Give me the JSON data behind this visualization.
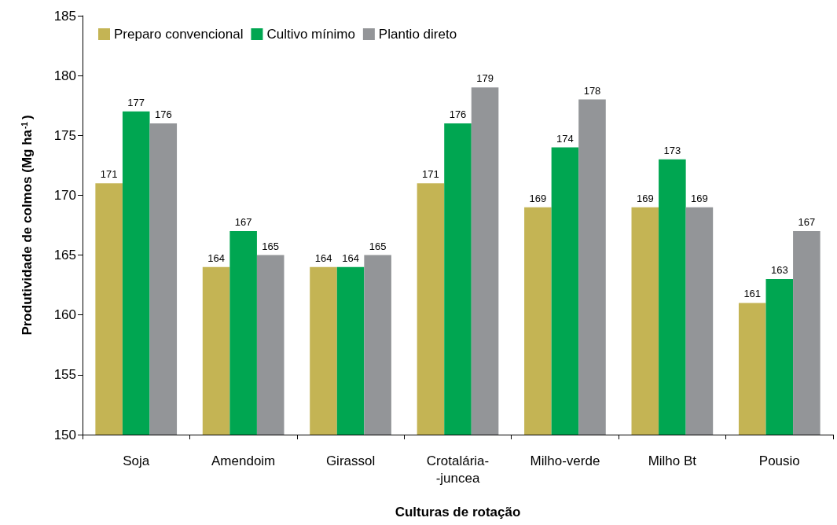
{
  "chart_data": {
    "type": "bar",
    "xlabel": "Culturas de rotação",
    "ylabel": "Produtividade de colmos (Mg ha$^{-1}$)",
    "categories": [
      "Soja",
      "Amendoim",
      "Girassol",
      "Crotalária-\n-juncea",
      "Milho-verde",
      "Milho Bt",
      "Pousio"
    ],
    "series": [
      {
        "name": "Preparo convencional",
        "color": "#c4b454",
        "values": [
          171,
          164,
          164,
          171,
          169,
          169,
          161
        ]
      },
      {
        "name": "Cultivo mínimo",
        "color": "#00a651",
        "values": [
          177,
          167,
          164,
          176,
          174,
          173,
          163
        ]
      },
      {
        "name": "Plantio direto",
        "color": "#939598",
        "values": [
          176,
          165,
          165,
          179,
          178,
          169,
          167
        ]
      }
    ],
    "ylim": [
      150,
      185
    ],
    "yticks": [
      150,
      155,
      160,
      165,
      170,
      175,
      180,
      185
    ],
    "grid": false,
    "legend": "top left",
    "data_labels": true
  }
}
